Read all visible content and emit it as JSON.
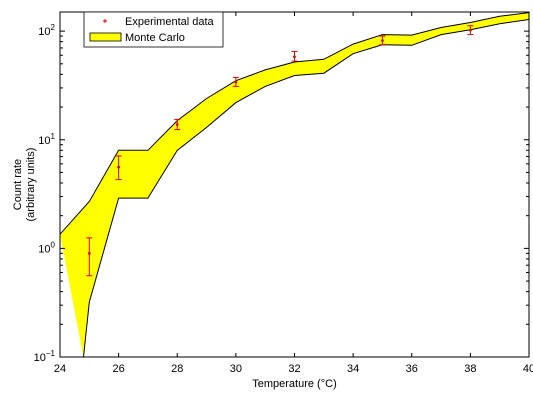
{
  "chart_data": {
    "type": "scatter",
    "title": "",
    "xlabel": "Temperature (°C)",
    "ylabel_lines": [
      "Count rate",
      "(arbitrary units)"
    ],
    "xlim": [
      24,
      40
    ],
    "ylim": [
      0.1,
      150
    ],
    "yscale": "log",
    "grid": false,
    "legend_position": "top-left",
    "x_ticks": [
      24,
      26,
      28,
      30,
      32,
      34,
      36,
      38,
      40
    ],
    "y_ticks": [
      {
        "value": 0.1,
        "mantissa": "10",
        "exp": "−1"
      },
      {
        "value": 1,
        "mantissa": "10",
        "exp": "0"
      },
      {
        "value": 10,
        "mantissa": "10",
        "exp": "1"
      },
      {
        "value": 100,
        "mantissa": "10",
        "exp": "2"
      }
    ],
    "series": [
      {
        "name": "Experimental data",
        "kind": "points_with_error_bars",
        "color": "#dd0000",
        "x": [
          25,
          26,
          28,
          30,
          32,
          35,
          38
        ],
        "y": [
          0.9,
          5.6,
          13.8,
          34,
          58,
          82,
          102
        ],
        "y_low": [
          0.56,
          4.3,
          12.4,
          31,
          53,
          75,
          93
        ],
        "y_high": [
          1.25,
          7.1,
          15.4,
          37.5,
          65,
          90,
          112
        ]
      },
      {
        "name": "Monte Carlo",
        "kind": "band",
        "fill": "#ffff00",
        "stroke": "#000000",
        "x_upper": [
          24,
          25,
          26,
          27,
          28,
          29,
          30,
          31,
          32,
          33,
          34,
          35,
          36,
          37,
          38,
          39,
          40
        ],
        "upper": [
          1.35,
          2.7,
          8,
          8,
          15,
          24,
          35,
          44,
          52,
          55,
          76,
          93,
          92,
          108,
          120,
          137,
          148
        ],
        "x_lower": [
          24.8,
          25,
          26,
          27,
          28,
          29,
          30,
          31,
          32,
          33,
          34,
          35,
          36,
          37,
          38,
          39,
          40
        ],
        "lower": [
          0.1,
          0.32,
          2.9,
          2.9,
          8,
          13,
          22,
          31,
          39,
          41,
          62,
          75,
          74,
          93,
          103,
          117,
          128
        ]
      }
    ]
  }
}
